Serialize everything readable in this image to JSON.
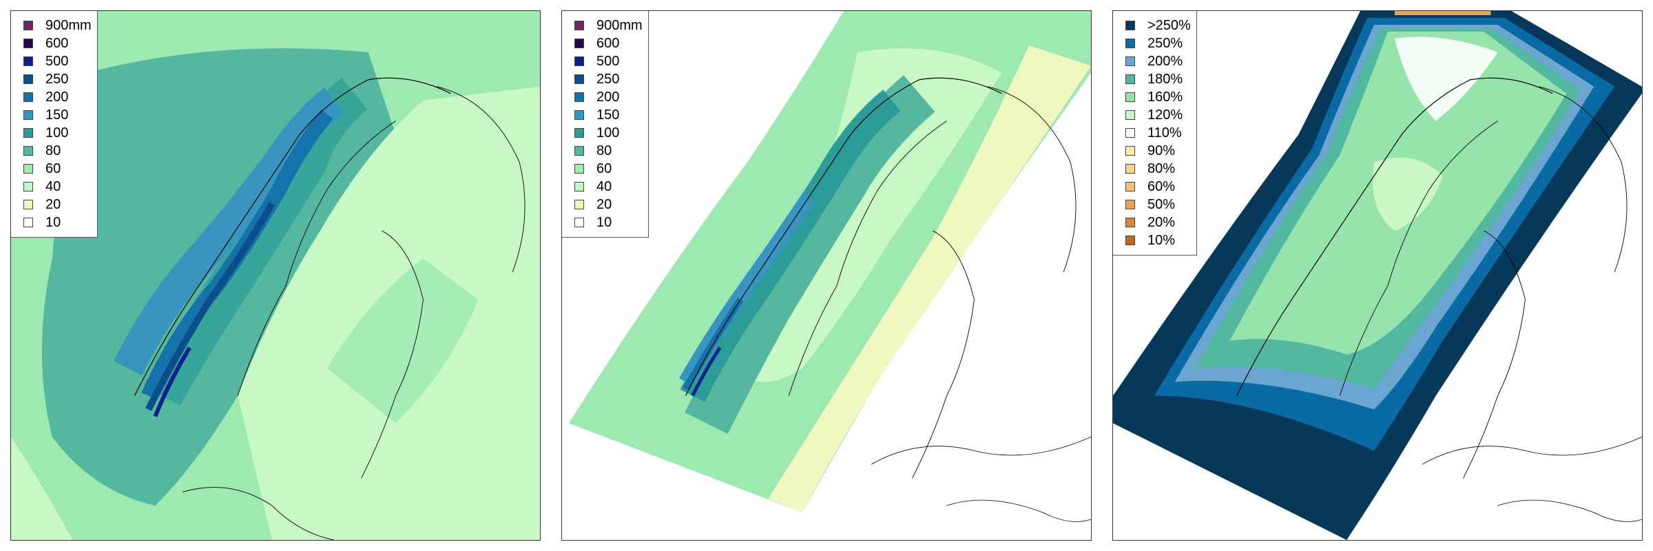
{
  "panels": [
    {
      "id": "panel-1",
      "legend": [
        {
          "label": "900mm",
          "color": "#6b2a5c"
        },
        {
          "label": "600",
          "color": "#1e0a4a"
        },
        {
          "label": "500",
          "color": "#0f1f8f"
        },
        {
          "label": "250",
          "color": "#0b4f8a"
        },
        {
          "label": "200",
          "color": "#1572ab"
        },
        {
          "label": "150",
          "color": "#3795c0"
        },
        {
          "label": "100",
          "color": "#2c9c98"
        },
        {
          "label": "80",
          "color": "#55b79e"
        },
        {
          "label": "60",
          "color": "#9ee8b1"
        },
        {
          "label": "40",
          "color": "#c8f8c6"
        },
        {
          "label": "20",
          "color": "#eef8c0"
        },
        {
          "label": "10",
          "color": "#ffffff"
        }
      ]
    },
    {
      "id": "panel-2",
      "legend": [
        {
          "label": "900mm",
          "color": "#6b2a5c"
        },
        {
          "label": "600",
          "color": "#1e0a4a"
        },
        {
          "label": "500",
          "color": "#0f1f8f"
        },
        {
          "label": "250",
          "color": "#0b4f8a"
        },
        {
          "label": "200",
          "color": "#1572ab"
        },
        {
          "label": "150",
          "color": "#3795c0"
        },
        {
          "label": "100",
          "color": "#2c9c98"
        },
        {
          "label": "80",
          "color": "#55b79e"
        },
        {
          "label": "60",
          "color": "#9ee8b1"
        },
        {
          "label": "40",
          "color": "#c8f8c6"
        },
        {
          "label": "20",
          "color": "#eef8c0"
        },
        {
          "label": "10",
          "color": "#ffffff"
        }
      ]
    },
    {
      "id": "panel-3",
      "legend": [
        {
          "label": ">250%",
          "color": "#063859"
        },
        {
          "label": "250%",
          "color": "#0a6aa4"
        },
        {
          "label": "200%",
          "color": "#6aa6cf"
        },
        {
          "label": "180%",
          "color": "#52b8a0"
        },
        {
          "label": "160%",
          "color": "#96e4ab"
        },
        {
          "label": "120%",
          "color": "#cbf6c6"
        },
        {
          "label": "110%",
          "color": "#ffffff"
        },
        {
          "label": "90%",
          "color": "#fff0b2"
        },
        {
          "label": "80%",
          "color": "#f6d889"
        },
        {
          "label": "60%",
          "color": "#f2c27a"
        },
        {
          "label": "50%",
          "color": "#e9a45a"
        },
        {
          "label": "20%",
          "color": "#d6873a"
        },
        {
          "label": "10%",
          "color": "#c06a22"
        }
      ]
    }
  ]
}
